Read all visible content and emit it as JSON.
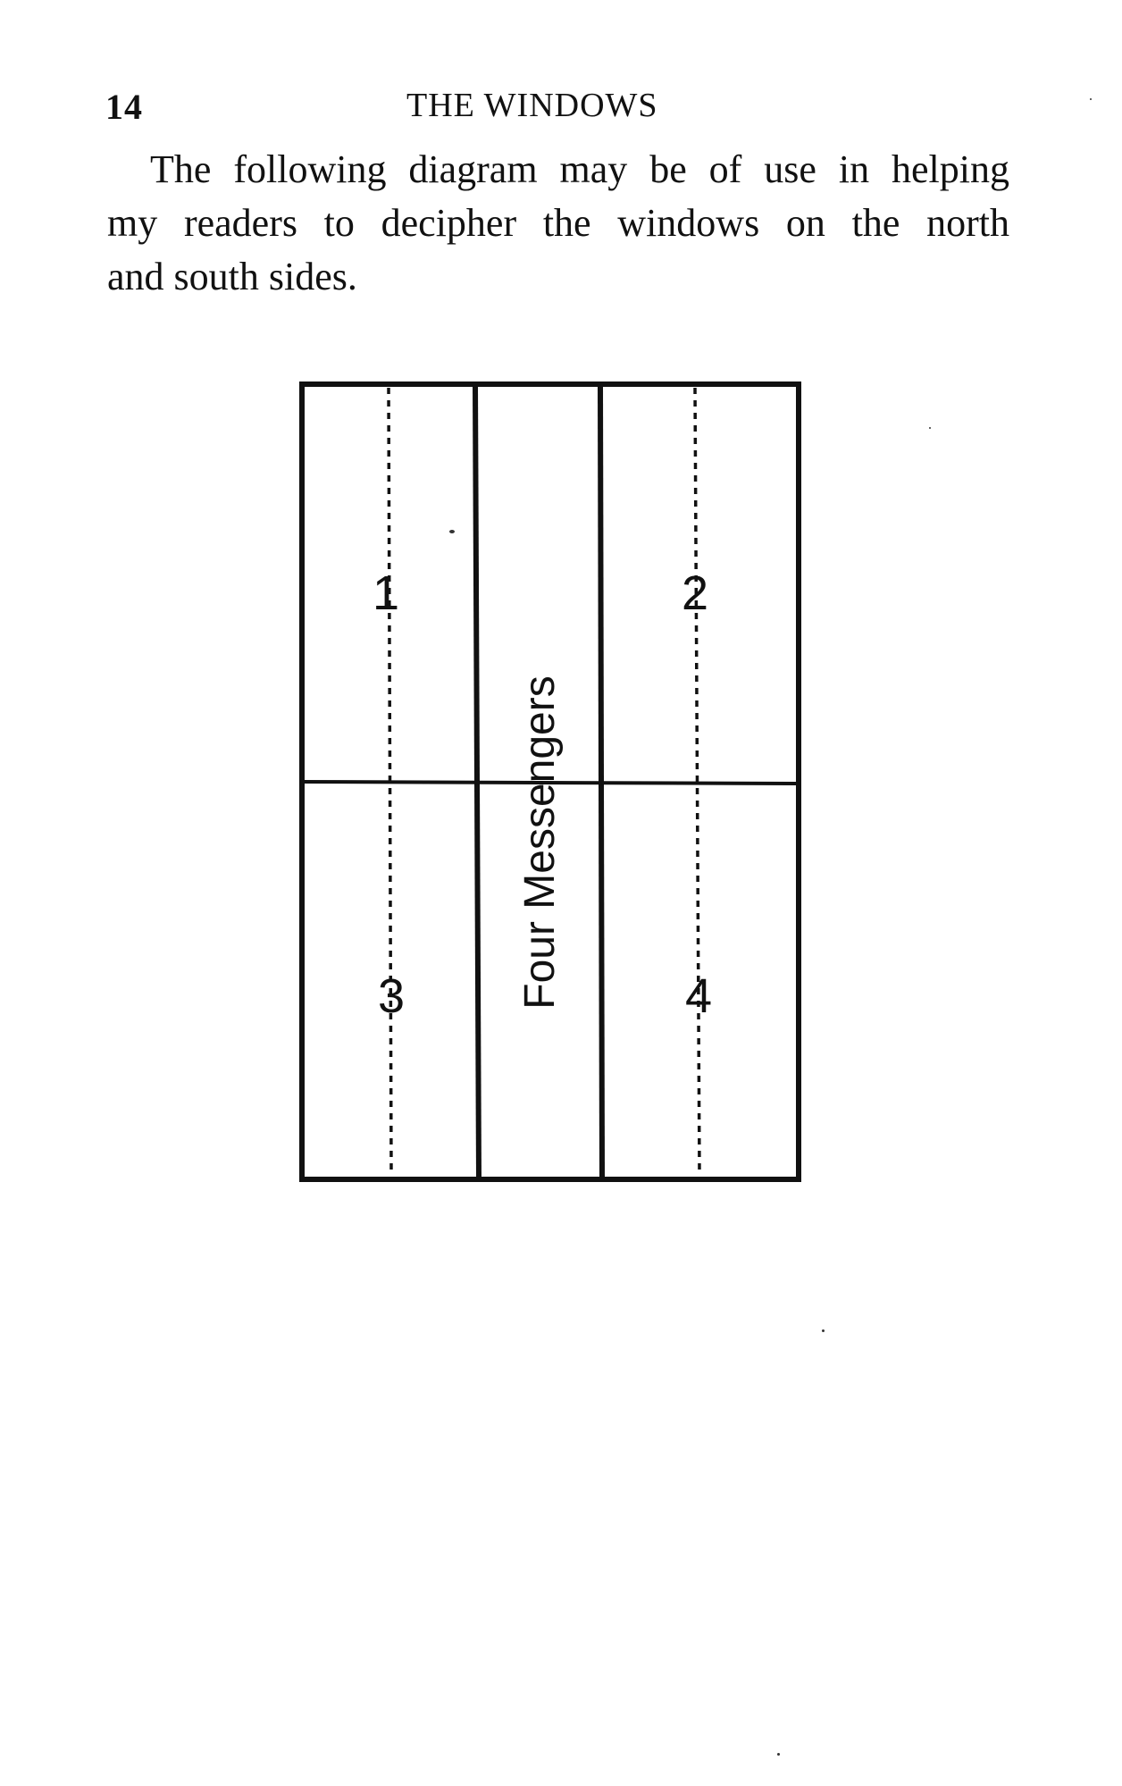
{
  "page": {
    "number": "14",
    "running_head": "THE WINDOWS"
  },
  "paragraph": {
    "lines": [
      "The following diagram may be of use in helping",
      "my readers to decipher the windows on the north",
      "and south sides."
    ]
  },
  "diagram": {
    "panel_1": "1",
    "panel_2": "2",
    "panel_3": "3",
    "panel_4": "4",
    "center_label": "Four Messengers"
  }
}
